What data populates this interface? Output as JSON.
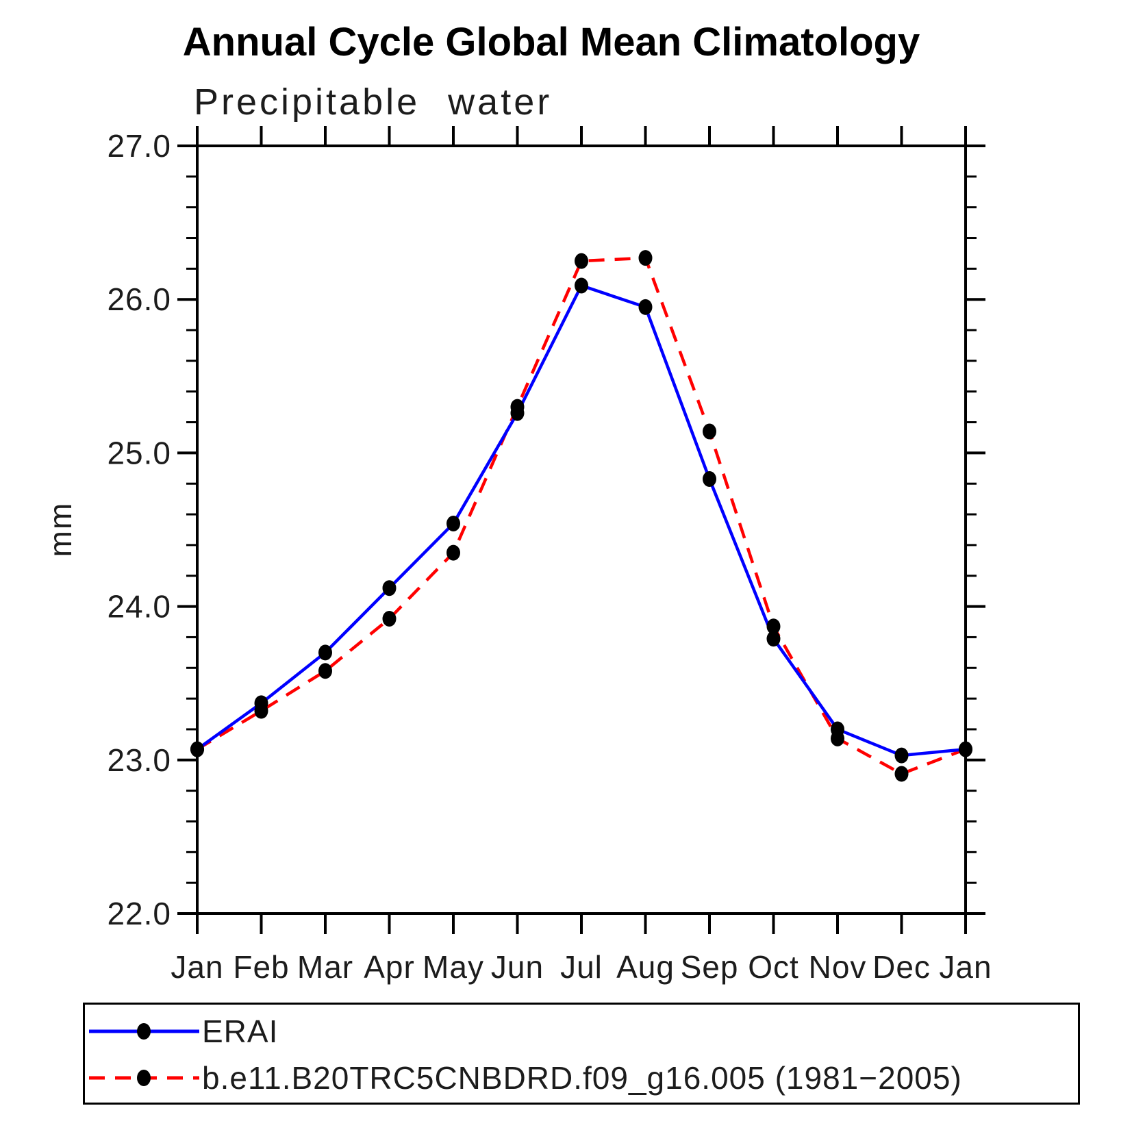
{
  "title": "Annual Cycle Global Mean Climatology",
  "subtitle": "Precipitable water",
  "y_axis_title": "mm",
  "chart_data": {
    "type": "line",
    "x_ticklabels": [
      "Jan",
      "Feb",
      "Mar",
      "Apr",
      "May",
      "Jun",
      "Jul",
      "Aug",
      "Sep",
      "Oct",
      "Nov",
      "Dec",
      "Jan"
    ],
    "ylim": [
      22.0,
      27.0
    ],
    "y_major_ticks": [
      22.0,
      23.0,
      24.0,
      25.0,
      26.0,
      27.0
    ],
    "y_minor_step": 0.2,
    "grid": "off",
    "legend_position": "bottom-box",
    "marker": "filled-black-dot",
    "series": [
      {
        "name": "ERAI",
        "color": "#0000ff",
        "line_style": "solid",
        "values": [
          23.07,
          23.37,
          23.7,
          24.12,
          24.54,
          25.26,
          26.09,
          25.95,
          24.83,
          23.79,
          23.2,
          23.03,
          23.07
        ]
      },
      {
        "name": "b.e11.B20TRC5CNBDRD.f09_g16.005 (1981−2005)",
        "color": "#ff0000",
        "line_style": "dashed",
        "values": [
          23.07,
          23.32,
          23.58,
          23.92,
          24.35,
          25.3,
          26.25,
          26.27,
          25.14,
          23.87,
          23.14,
          22.91,
          23.07
        ]
      }
    ]
  }
}
